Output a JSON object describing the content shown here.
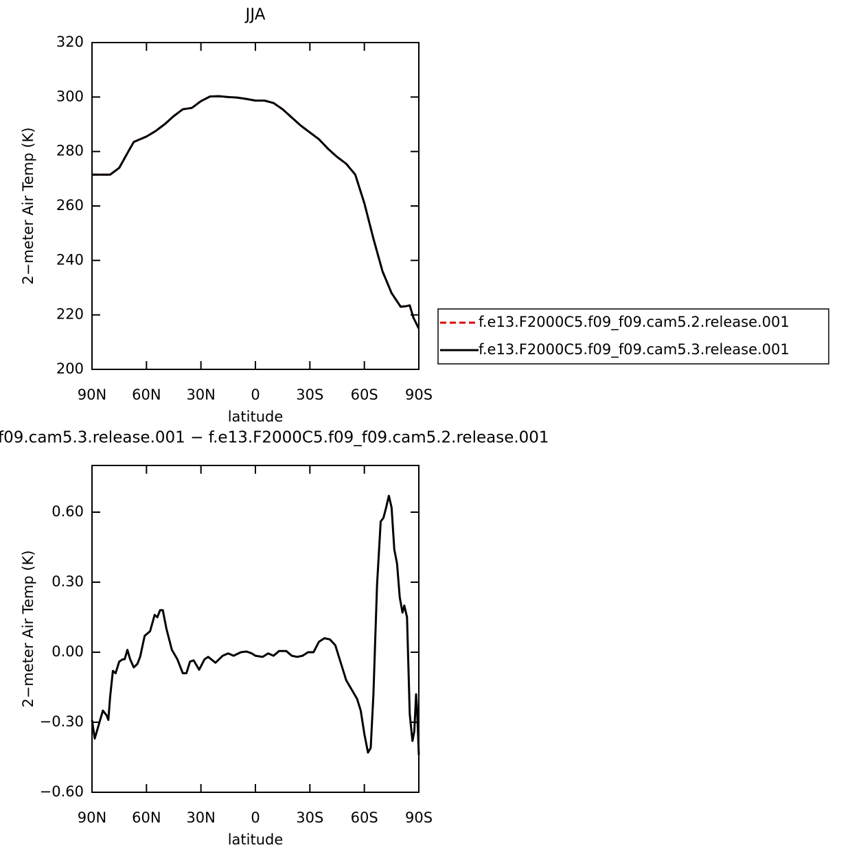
{
  "chart_data": [
    {
      "type": "line",
      "title": "JJA",
      "xlabel": "latitude",
      "ylabel": "2−meter Air Temp (K)",
      "x": [
        90,
        85,
        80,
        75,
        70,
        67,
        60,
        55,
        50,
        45,
        40,
        35,
        30,
        25,
        20,
        15,
        10,
        5,
        0,
        -5,
        -10,
        -15,
        -20,
        -25,
        -30,
        -35,
        -40,
        -45,
        -50,
        -55,
        -60,
        -65,
        -70,
        -75,
        -80,
        -83,
        -85,
        -87,
        -90
      ],
      "series": [
        {
          "name": "f.e13.F2000C5.f09_f09.cam5.2.release.001",
          "color": "#e00000",
          "dash": true,
          "values": [
            271.5,
            271.5,
            271.5,
            274,
            280,
            283.5,
            285.5,
            287.5,
            290,
            293,
            295.5,
            296,
            298.5,
            300.2,
            300.3,
            300,
            299.8,
            299.3,
            298.7,
            298.7,
            297.8,
            295.5,
            292.5,
            289.5,
            287,
            284.5,
            281,
            278,
            275.5,
            271.5,
            261,
            248,
            236,
            228,
            223,
            223.2,
            223.5,
            219,
            215
          ]
        },
        {
          "name": "f.e13.F2000C5.f09_f09.cam5.3.release.001",
          "color": "#000000",
          "dash": false,
          "values": [
            271.5,
            271.5,
            271.5,
            274,
            280,
            283.5,
            285.5,
            287.5,
            290,
            293,
            295.5,
            296,
            298.5,
            300.2,
            300.3,
            300,
            299.8,
            299.3,
            298.7,
            298.7,
            297.8,
            295.5,
            292.5,
            289.5,
            287,
            284.5,
            281,
            278,
            275.5,
            271.5,
            261,
            248,
            236,
            228,
            223,
            223.2,
            223.5,
            219,
            215
          ]
        }
      ],
      "xlim": [
        90,
        -90
      ],
      "xticks": [
        {
          "value": 90,
          "label": "90N"
        },
        {
          "value": 60,
          "label": "60N"
        },
        {
          "value": 30,
          "label": "30N"
        },
        0,
        {
          "value": -30,
          "label": "30S"
        },
        {
          "value": -60,
          "label": "60S"
        },
        {
          "value": -90,
          "label": "90S"
        }
      ],
      "ylim": [
        200,
        320
      ],
      "yticks": [
        200,
        220,
        240,
        260,
        280,
        300,
        320
      ]
    },
    {
      "type": "line",
      "title": "f09.cam5.3.release.001 − f.e13.F2000C5.f09_f09.cam5.2.release.001",
      "xlabel": "latitude",
      "ylabel": "2−meter Air Temp (K)",
      "x": [
        90,
        88.5,
        87,
        84,
        82,
        81,
        80,
        78.5,
        77,
        75,
        73,
        72,
        70.5,
        69,
        67,
        65,
        63.5,
        61,
        58,
        55.5,
        54,
        52.5,
        51,
        49,
        46,
        43,
        40,
        38,
        36,
        34,
        31,
        28,
        26,
        22,
        18,
        15,
        12,
        8,
        5,
        2,
        0,
        -4,
        -7,
        -10,
        -13,
        -17,
        -20,
        -23,
        -26,
        -29,
        -32,
        -35,
        -38,
        -41,
        -44,
        -47,
        -50,
        -53,
        -56,
        -58,
        -60,
        -62,
        -63.5,
        -65,
        -67,
        -69,
        -70.5,
        -72,
        -73.5,
        -75,
        -76.5,
        -78,
        -79.5,
        -81,
        -82,
        -83.5,
        -85,
        -86.5,
        -87.5,
        -88.5,
        -89,
        -90
      ],
      "series": [
        {
          "color": "#000000",
          "values": [
            -0.29,
            -0.37,
            -0.33,
            -0.25,
            -0.27,
            -0.29,
            -0.19,
            -0.08,
            -0.09,
            -0.04,
            -0.03,
            -0.03,
            0.01,
            -0.03,
            -0.065,
            -0.05,
            -0.02,
            0.07,
            0.09,
            0.16,
            0.15,
            0.18,
            0.18,
            0.1,
            0.01,
            -0.03,
            -0.09,
            -0.09,
            -0.04,
            -0.035,
            -0.075,
            -0.03,
            -0.02,
            -0.045,
            -0.015,
            -0.005,
            -0.015,
            0,
            0.003,
            -0.005,
            -0.015,
            -0.02,
            -0.005,
            -0.015,
            0.005,
            0.005,
            -0.015,
            -0.02,
            -0.015,
            0,
            0,
            0.045,
            0.06,
            0.055,
            0.03,
            -0.045,
            -0.12,
            -0.16,
            -0.2,
            -0.25,
            -0.35,
            -0.43,
            -0.41,
            -0.18,
            0.29,
            0.56,
            0.575,
            0.62,
            0.67,
            0.62,
            0.44,
            0.38,
            0.235,
            0.17,
            0.2,
            0.15,
            -0.265,
            -0.38,
            -0.34,
            -0.18,
            -0.235,
            -0.44
          ]
        }
      ],
      "xlim": [
        90,
        -90
      ],
      "xticks": [
        {
          "value": 90,
          "label": "90N"
        },
        {
          "value": 60,
          "label": "60N"
        },
        {
          "value": 30,
          "label": "30N"
        },
        0,
        {
          "value": -30,
          "label": "30S"
        },
        {
          "value": -60,
          "label": "60S"
        },
        {
          "value": -90,
          "label": "90S"
        }
      ],
      "ylim": [
        -0.6,
        0.8
      ],
      "yticks": [
        {
          "value": -0.6,
          "label": "−0.60"
        },
        {
          "value": -0.3,
          "label": "−0.30"
        },
        {
          "value": 0,
          "label": "0.00"
        },
        {
          "value": 0.3,
          "label": "0.30"
        },
        {
          "value": 0.6,
          "label": "0.60"
        }
      ]
    }
  ]
}
